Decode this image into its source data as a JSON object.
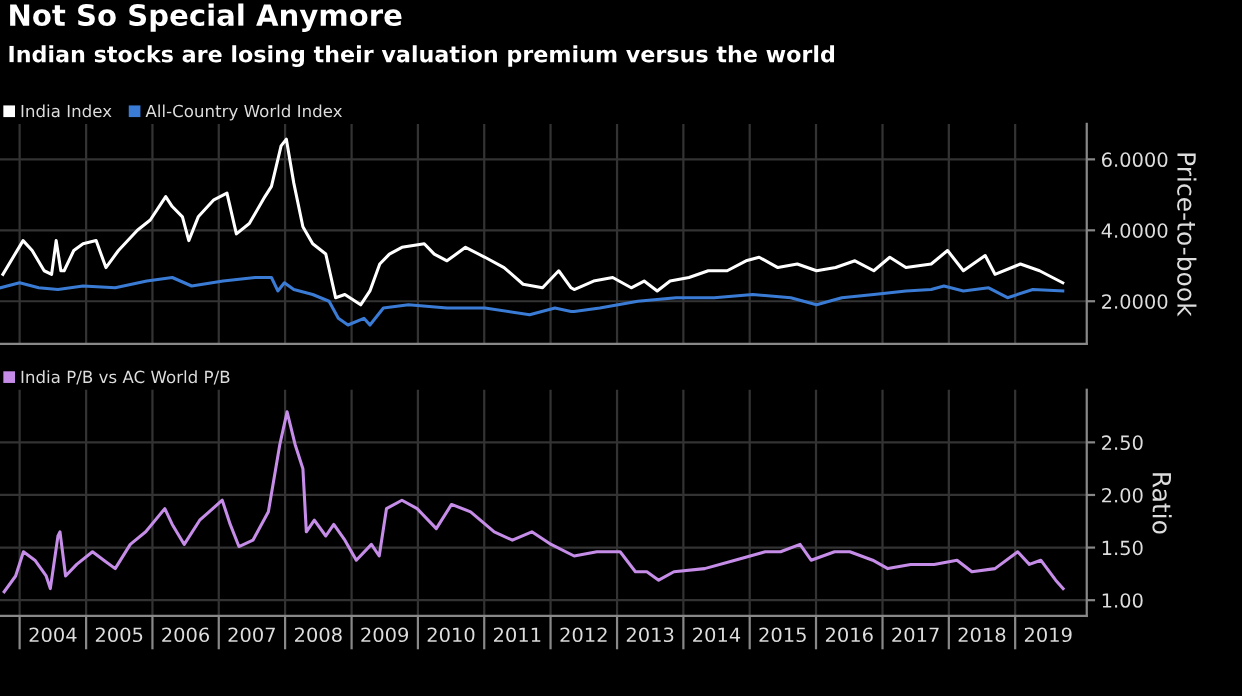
{
  "chart_data": [
    {
      "type": "line",
      "title": "Not So Special Anymore",
      "subtitle": "Indian stocks are losing their valuation premium versus the world",
      "ylabel": "Price-to-book",
      "legend": "top left",
      "grid": true,
      "tick_labels": "y",
      "xlim": [
        "2003-09-15",
        "2020-01-30"
      ],
      "xticks": [
        {
          "value": "2004-01-01",
          "label": null
        },
        {
          "value": "2005-01-01",
          "label": null
        },
        {
          "value": "2006-01-01",
          "label": null
        },
        {
          "value": "2007-01-01",
          "label": null
        },
        {
          "value": "2008-01-01",
          "label": null
        },
        {
          "value": "2009-01-01",
          "label": null
        },
        {
          "value": "2010-01-01",
          "label": null
        },
        {
          "value": "2011-01-01",
          "label": null
        },
        {
          "value": "2012-01-01",
          "label": null
        },
        {
          "value": "2013-01-01",
          "label": null
        },
        {
          "value": "2014-01-01",
          "label": null
        },
        {
          "value": "2015-01-01",
          "label": null
        },
        {
          "value": "2016-01-01",
          "label": null
        },
        {
          "value": "2017-01-01",
          "label": null
        },
        {
          "value": "2018-01-01",
          "label": null
        },
        {
          "value": "2019-01-01",
          "label": null
        }
      ],
      "ylim": [
        0.8,
        7.0
      ],
      "yticks": [
        {
          "value": 2,
          "label": "2.0000"
        },
        {
          "value": 4,
          "label": "4.0000"
        },
        {
          "value": 6,
          "label": "6.0000"
        }
      ],
      "series": [
        {
          "name": "India Index",
          "color": "#ffffff",
          "x": [
            "2003-10-01",
            "2004-01-20",
            "2004-03-10",
            "2004-05-15",
            "2004-06-25",
            "2004-07-20",
            "2004-08-15",
            "2004-09-02",
            "2004-10-25",
            "2004-12-15",
            "2005-02-25",
            "2005-04-20",
            "2005-06-28",
            "2005-10-10",
            "2005-12-20",
            "2006-03-15",
            "2006-04-20",
            "2006-06-15",
            "2006-07-20",
            "2006-09-10",
            "2006-12-05",
            "2007-02-15",
            "2007-04-08",
            "2007-06-18",
            "2007-09-12",
            "2007-10-18",
            "2007-12-10",
            "2008-01-08",
            "2008-02-18",
            "2008-04-08",
            "2008-06-01",
            "2008-08-12",
            "2008-10-05",
            "2008-11-25",
            "2009-02-20",
            "2009-04-12",
            "2009-06-05",
            "2009-07-28",
            "2009-10-05",
            "2010-02-05",
            "2010-04-01",
            "2010-06-10",
            "2010-09-20",
            "2011-01-05",
            "2011-04-20",
            "2011-08-03",
            "2011-11-18",
            "2012-02-15",
            "2012-04-23",
            "2012-05-10",
            "2012-08-25",
            "2012-12-08",
            "2013-03-20",
            "2013-05-30",
            "2013-08-10",
            "2013-10-20",
            "2014-02-01",
            "2014-05-18",
            "2014-08-30",
            "2014-12-12",
            "2015-02-22",
            "2015-06-05",
            "2015-09-20",
            "2016-01-04",
            "2016-04-18",
            "2016-08-02",
            "2016-11-14",
            "2017-02-10",
            "2017-05-10",
            "2017-09-26",
            "2017-12-25",
            "2018-03-22",
            "2018-07-20",
            "2018-09-12",
            "2019-01-30",
            "2019-05-15",
            "2019-09-20"
          ],
          "values": [
            2.76,
            3.71,
            3.43,
            2.86,
            2.76,
            3.71,
            2.86,
            2.86,
            3.43,
            3.62,
            3.71,
            2.95,
            3.43,
            4.0,
            4.29,
            4.95,
            4.67,
            4.38,
            3.71,
            4.38,
            4.86,
            5.05,
            3.9,
            4.19,
            4.95,
            5.24,
            6.38,
            6.57,
            5.33,
            4.1,
            3.62,
            3.33,
            2.1,
            2.19,
            1.9,
            2.29,
            3.05,
            3.33,
            3.52,
            3.62,
            3.33,
            3.14,
            3.52,
            3.24,
            2.95,
            2.48,
            2.38,
            2.86,
            2.38,
            2.33,
            2.57,
            2.67,
            2.38,
            2.57,
            2.29,
            2.57,
            2.67,
            2.86,
            2.86,
            3.14,
            3.24,
            2.95,
            3.05,
            2.86,
            2.95,
            3.14,
            2.86,
            3.24,
            2.95,
            3.05,
            3.43,
            2.86,
            3.29,
            2.76,
            3.05,
            2.86,
            2.52
          ]
        },
        {
          "name": "All-Country World Index",
          "color": "#3a7bd5",
          "x": [
            "2003-09-17",
            "2004-01-01",
            "2004-04-15",
            "2004-07-30",
            "2004-12-15",
            "2005-06-10",
            "2005-12-01",
            "2006-04-20",
            "2006-08-05",
            "2007-01-25",
            "2007-07-20",
            "2007-10-18",
            "2007-11-22",
            "2007-12-28",
            "2008-02-18",
            "2008-06-01",
            "2008-08-30",
            "2008-10-20",
            "2008-12-12",
            "2009-03-10",
            "2009-04-12",
            "2009-06-25",
            "2009-11-10",
            "2010-06-10",
            "2011-01-05",
            "2011-09-08",
            "2012-01-25",
            "2012-04-23",
            "2012-05-10",
            "2012-09-28",
            "2013-04-25",
            "2013-11-22",
            "2014-06-20",
            "2015-01-18",
            "2015-08-15",
            "2016-01-04",
            "2016-05-22",
            "2016-11-14",
            "2017-05-10",
            "2017-09-26",
            "2017-12-05",
            "2018-03-22",
            "2018-08-08",
            "2018-11-20",
            "2019-04-08",
            "2019-09-20"
          ],
          "values": [
            2.38,
            2.52,
            2.38,
            2.33,
            2.43,
            2.38,
            2.57,
            2.67,
            2.43,
            2.57,
            2.67,
            2.67,
            2.29,
            2.52,
            2.33,
            2.19,
            2.0,
            1.52,
            1.33,
            1.52,
            1.33,
            1.81,
            1.9,
            1.81,
            1.81,
            1.62,
            1.81,
            1.71,
            1.71,
            1.81,
            2.0,
            2.1,
            2.1,
            2.19,
            2.1,
            1.9,
            2.1,
            2.19,
            2.29,
            2.33,
            2.43,
            2.29,
            2.38,
            2.1,
            2.33,
            2.29
          ]
        }
      ]
    },
    {
      "type": "line",
      "ylabel": "Ratio",
      "legend": "top left",
      "grid": true,
      "xlim": [
        "2003-09-15",
        "2020-01-30"
      ],
      "xticks": [
        {
          "value": "2004-01-01",
          "label": null
        },
        {
          "value": "2005-01-01",
          "label": null
        },
        {
          "value": "2006-01-01",
          "label": null
        },
        {
          "value": "2007-01-01",
          "label": null
        },
        {
          "value": "2008-01-01",
          "label": null
        },
        {
          "value": "2009-01-01",
          "label": null
        },
        {
          "value": "2010-01-01",
          "label": null
        },
        {
          "value": "2011-01-01",
          "label": null
        },
        {
          "value": "2012-01-01",
          "label": null
        },
        {
          "value": "2013-01-01",
          "label": null
        },
        {
          "value": "2014-01-01",
          "label": null
        },
        {
          "value": "2015-01-01",
          "label": null
        },
        {
          "value": "2016-01-01",
          "label": null
        },
        {
          "value": "2017-01-01",
          "label": null
        },
        {
          "value": "2018-01-01",
          "label": null
        },
        {
          "value": "2019-01-01",
          "label": null
        },
        {
          "value": "2004-07-02",
          "label": "2004"
        },
        {
          "value": "2005-07-02",
          "label": "2005"
        },
        {
          "value": "2006-07-02",
          "label": "2006"
        },
        {
          "value": "2007-07-02",
          "label": "2007"
        },
        {
          "value": "2008-07-02",
          "label": "2008"
        },
        {
          "value": "2009-07-02",
          "label": "2009"
        },
        {
          "value": "2010-07-02",
          "label": "2010"
        },
        {
          "value": "2011-07-02",
          "label": "2011"
        },
        {
          "value": "2012-07-02",
          "label": "2012"
        },
        {
          "value": "2013-07-02",
          "label": "2013"
        },
        {
          "value": "2014-07-02",
          "label": "2014"
        },
        {
          "value": "2015-07-02",
          "label": "2015"
        },
        {
          "value": "2016-07-02",
          "label": "2016"
        },
        {
          "value": "2017-07-02",
          "label": "2017"
        },
        {
          "value": "2018-07-02",
          "label": "2018"
        },
        {
          "value": "2019-07-02",
          "label": "2019"
        }
      ],
      "ylim": [
        0.85,
        3.0
      ],
      "yticks": [
        {
          "value": 1,
          "label": "1.00"
        },
        {
          "value": 1.5,
          "label": "1.50"
        },
        {
          "value": 2,
          "label": "2.00"
        },
        {
          "value": 2.5,
          "label": "2.50"
        }
      ],
      "series": [
        {
          "name": "India P/B vs AC World P/B",
          "color": "#c58ce8",
          "x": [
            "2003-10-08",
            "2003-12-10",
            "2004-01-22",
            "2004-03-25",
            "2004-05-26",
            "2004-06-18",
            "2004-07-30",
            "2004-08-10",
            "2004-09-10",
            "2004-11-10",
            "2005-02-05",
            "2005-04-08",
            "2005-06-10",
            "2005-09-01",
            "2005-11-25",
            "2006-03-10",
            "2006-04-20",
            "2006-06-25",
            "2006-09-18",
            "2007-01-20",
            "2007-03-05",
            "2007-04-22",
            "2007-07-08",
            "2007-10-01",
            "2007-12-03",
            "2008-01-12",
            "2008-02-25",
            "2008-04-08",
            "2008-04-27",
            "2008-06-10",
            "2008-08-12",
            "2008-09-25",
            "2008-11-25",
            "2009-01-27",
            "2009-04-20",
            "2009-06-02",
            "2009-07-12",
            "2009-10-05",
            "2009-12-28",
            "2010-04-12",
            "2010-07-05",
            "2010-10-18",
            "2011-02-25",
            "2011-06-05",
            "2011-09-20",
            "2012-01-04",
            "2012-05-10",
            "2012-09-12",
            "2013-01-18",
            "2013-04-12",
            "2013-06-14",
            "2013-08-18",
            "2013-11-10",
            "2014-04-28",
            "2014-10-12",
            "2015-03-28",
            "2015-06-20",
            "2015-10-05",
            "2015-12-05",
            "2016-04-12",
            "2016-07-05",
            "2016-11-08",
            "2017-01-30",
            "2017-06-05",
            "2017-10-12",
            "2018-02-15",
            "2018-05-08",
            "2018-09-12",
            "2019-01-15",
            "2019-03-20",
            "2019-05-22",
            "2019-08-12",
            "2019-09-22"
          ],
          "values": [
            1.08,
            1.23,
            1.46,
            1.38,
            1.23,
            1.11,
            1.61,
            1.65,
            1.23,
            1.34,
            1.46,
            1.38,
            1.3,
            1.53,
            1.65,
            1.87,
            1.72,
            1.53,
            1.76,
            1.95,
            1.72,
            1.51,
            1.57,
            1.84,
            2.48,
            2.79,
            2.48,
            2.25,
            1.65,
            1.76,
            1.61,
            1.72,
            1.57,
            1.38,
            1.53,
            1.42,
            1.87,
            1.95,
            1.87,
            1.68,
            1.91,
            1.84,
            1.65,
            1.57,
            1.65,
            1.53,
            1.42,
            1.46,
            1.46,
            1.27,
            1.27,
            1.19,
            1.27,
            1.3,
            1.38,
            1.46,
            1.46,
            1.53,
            1.38,
            1.46,
            1.46,
            1.38,
            1.3,
            1.34,
            1.34,
            1.38,
            1.27,
            1.3,
            1.46,
            1.34,
            1.38,
            1.19,
            1.11
          ]
        }
      ]
    }
  ]
}
